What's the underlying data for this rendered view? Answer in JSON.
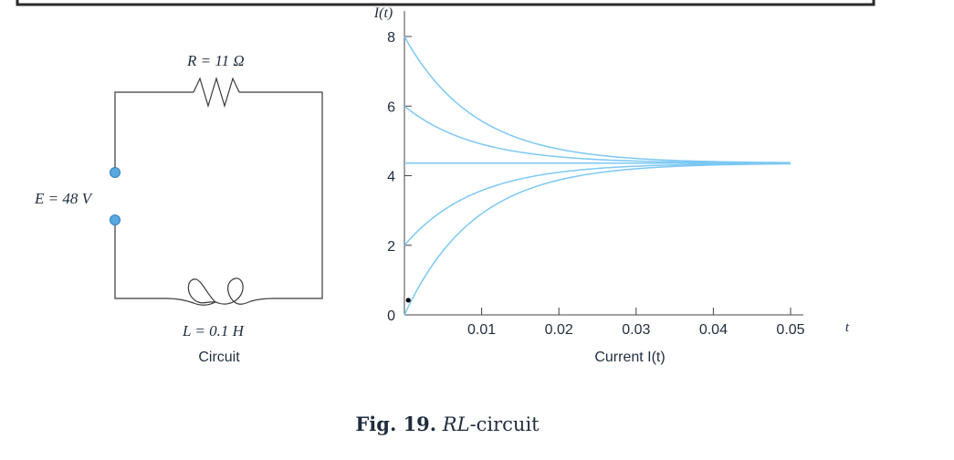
{
  "circuit": {
    "resistor_label": "R = 11 Ω",
    "source_label": "E = 48 V",
    "inductor_label": "L = 0.1 H",
    "caption": "Circuit"
  },
  "chart_data": {
    "type": "line",
    "title": "",
    "xlabel": "Current I(t)",
    "ylabel": "I(t)",
    "x_axis_end_label": "t",
    "xlim": [
      0,
      0.05
    ],
    "ylim": [
      0,
      8
    ],
    "x_ticks": [
      0.01,
      0.02,
      0.03,
      0.04,
      0.05
    ],
    "x_tick_labels": [
      "0.01",
      "0.02",
      "0.03",
      "0.04",
      "0.05"
    ],
    "y_ticks": [
      0,
      2,
      4,
      6,
      8
    ],
    "y_tick_labels": [
      "0",
      "2",
      "4",
      "6",
      "8"
    ],
    "steady_state": 4.36,
    "time_constant": 0.0091,
    "series": [
      {
        "initial_value": 8
      },
      {
        "initial_value": 6
      },
      {
        "initial_value": 4.36
      },
      {
        "initial_value": 2
      },
      {
        "initial_value": 0
      }
    ],
    "marker_point": {
      "x": 0.0005,
      "y": 0.5
    },
    "line_color": "#7cc8f4",
    "grid": false
  },
  "figure_caption": {
    "label": "Fig. 19.",
    "italic": "RL",
    "rest": "-circuit"
  },
  "colors": {
    "wire": "#3a3a3a",
    "terminal": "#5aa8e0",
    "text": "#1f2d3d",
    "frame": "#2b2b2b"
  }
}
